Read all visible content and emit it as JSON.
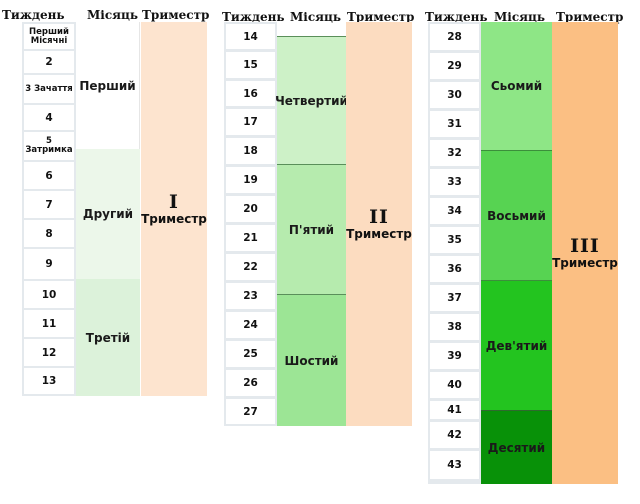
{
  "headers": {
    "week": "Тиждень",
    "month": "Місяць",
    "trimester": "Триместр"
  },
  "blocks": [
    {
      "trimester": {
        "numeral": "I",
        "label": "Триместр",
        "color": "#fde4cf"
      },
      "weeks": [
        {
          "id": "w1",
          "label": "Перший Місячні"
        },
        {
          "id": "w2",
          "label": "2"
        },
        {
          "id": "w3",
          "label": "3 Зачаття"
        },
        {
          "id": "w4",
          "label": "4"
        },
        {
          "id": "w5",
          "label": "5 Затримка"
        },
        {
          "id": "w6",
          "label": "6"
        },
        {
          "id": "w7",
          "label": "7"
        },
        {
          "id": "w8",
          "label": "8"
        },
        {
          "id": "w9",
          "label": "9"
        },
        {
          "id": "w10",
          "label": "10"
        },
        {
          "id": "w11",
          "label": "11"
        },
        {
          "id": "w12",
          "label": "12"
        },
        {
          "id": "w13",
          "label": "13"
        }
      ],
      "months": [
        {
          "label": "Перший",
          "color": "#ffffff"
        },
        {
          "label": "Другий",
          "color": "#ecf7ea"
        },
        {
          "label": "Третій",
          "color": "#dcf2da"
        }
      ]
    },
    {
      "trimester": {
        "numeral": "II",
        "label": "Триместр",
        "color": "#fcdcc0"
      },
      "weeks": [
        {
          "id": "w14",
          "label": "14"
        },
        {
          "id": "w15",
          "label": "15"
        },
        {
          "id": "w16",
          "label": "16"
        },
        {
          "id": "w17",
          "label": "17"
        },
        {
          "id": "w18",
          "label": "18"
        },
        {
          "id": "w19",
          "label": "19"
        },
        {
          "id": "w20",
          "label": "20"
        },
        {
          "id": "w21",
          "label": "21"
        },
        {
          "id": "w22",
          "label": "22"
        },
        {
          "id": "w23",
          "label": "23"
        },
        {
          "id": "w24",
          "label": "24"
        },
        {
          "id": "w25",
          "label": "25"
        },
        {
          "id": "w26",
          "label": "26"
        },
        {
          "id": "w27",
          "label": "27"
        }
      ],
      "months": [
        {
          "label": "Четвертий",
          "color": "#cdf1c7"
        },
        {
          "label": "П'ятий",
          "color": "#b6ebae"
        },
        {
          "label": "Шостий",
          "color": "#9ce595"
        }
      ]
    },
    {
      "trimester": {
        "numeral": "III",
        "label": "Триместр",
        "color": "#fbbf83"
      },
      "weeks": [
        {
          "id": "w28",
          "label": "28"
        },
        {
          "id": "w29",
          "label": "29"
        },
        {
          "id": "w30",
          "label": "30"
        },
        {
          "id": "w31",
          "label": "31"
        },
        {
          "id": "w32",
          "label": "32"
        },
        {
          "id": "w33",
          "label": "33"
        },
        {
          "id": "w34",
          "label": "34"
        },
        {
          "id": "w35",
          "label": "35"
        },
        {
          "id": "w36",
          "label": "36"
        },
        {
          "id": "w37",
          "label": "37"
        },
        {
          "id": "w38",
          "label": "38"
        },
        {
          "id": "w39",
          "label": "39"
        },
        {
          "id": "w40",
          "label": "40"
        },
        {
          "id": "w41",
          "label": "41"
        },
        {
          "id": "w42",
          "label": "42"
        },
        {
          "id": "w43",
          "label": "43"
        }
      ],
      "months": [
        {
          "label": "Сьомий",
          "color": "#8ee686"
        },
        {
          "label": "Восьмий",
          "color": "#57d352"
        },
        {
          "label": "Дев'ятий",
          "color": "#23c41f"
        },
        {
          "label": "Десятий",
          "color": "#089108"
        }
      ]
    }
  ]
}
